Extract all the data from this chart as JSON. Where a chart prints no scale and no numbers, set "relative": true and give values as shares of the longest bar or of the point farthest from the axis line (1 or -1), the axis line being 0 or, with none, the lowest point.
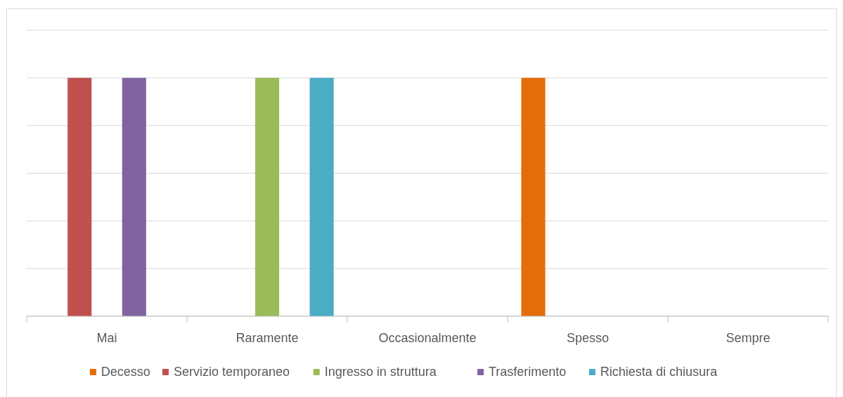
{
  "chart_data": {
    "type": "bar",
    "relative": true,
    "grid": true,
    "legend": "bottom",
    "categories": [
      "Mai",
      "Raramente",
      "Occasionalmente",
      "Spesso",
      "Sempre"
    ],
    "series": [
      {
        "name": "Decesso",
        "color": "#e46c0a",
        "values": [
          null,
          null,
          null,
          1,
          null
        ]
      },
      {
        "name": "Servizio temporaneo",
        "color": "#c0504d",
        "values": [
          1,
          null,
          null,
          null,
          null
        ]
      },
      {
        "name": "Ingresso in struttura",
        "color": "#9bbb59",
        "values": [
          null,
          1,
          null,
          null,
          null
        ]
      },
      {
        "name": "Trasferimento",
        "color": "#8064a2",
        "values": [
          1,
          null,
          null,
          null,
          null
        ]
      },
      {
        "name": "Richiesta di chiusura",
        "color": "#4bacc6",
        "values": [
          null,
          1,
          null,
          null,
          null
        ]
      }
    ]
  }
}
